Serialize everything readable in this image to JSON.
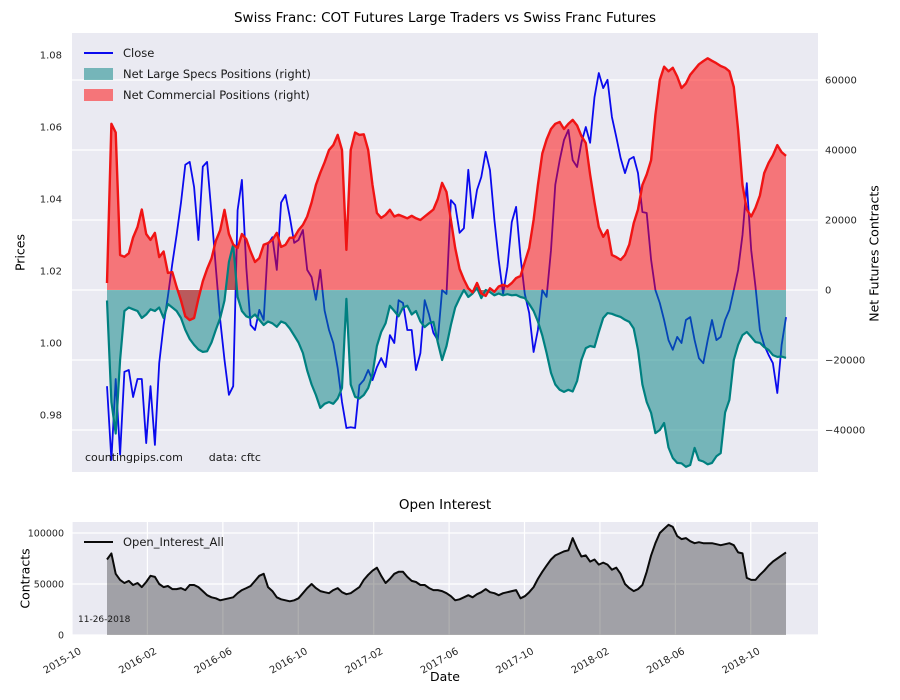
{
  "top_chart": {
    "title": "Swiss Franc: COT Futures Large Traders vs Swiss Franc Futures",
    "ylabel_left": "Prices",
    "ylabel_right": "Net Futures Contracts",
    "legend": {
      "close": "Close",
      "specs": "Net Large Specs Positions (right)",
      "comm": "Net Commercial Positions (right)"
    },
    "watermark": "countingpips.com",
    "source_note": "data: cftc",
    "colors": {
      "close_line": "#0a0aee",
      "specs_line": "#008080",
      "comm_line": "#f01414",
      "plot_bg": "#eaeaf2",
      "grid": "#ffffff"
    }
  },
  "bottom_chart": {
    "title": "Open Interest",
    "ylabel": "Contracts",
    "xlabel": "Date",
    "legend": "Open_Interest_All",
    "annotation_date": "11-26-2018",
    "colors": {
      "line": "#0a0a0a",
      "plot_bg": "#eaeaf2",
      "grid": "#ffffff"
    }
  },
  "chart_data": [
    {
      "type": "line+area",
      "title": "Swiss Franc: COT Futures Large Traders vs Swiss Franc Futures",
      "x_unit": "weekly, 2015-11-30 to 2018-11-26",
      "n_points": 157,
      "ylabel_left": "Prices",
      "ylabel_right": "Net Futures Contracts",
      "yticks_left": [
        0.98,
        1.0,
        1.02,
        1.04,
        1.06,
        1.08
      ],
      "yticks_right": [
        -40000,
        -20000,
        0,
        20000,
        40000,
        60000
      ],
      "ylim_left": [
        0.9642,
        1.0861
      ],
      "ylim_right": [
        -52000,
        73400
      ],
      "grid": "horizontal-right-axis",
      "legend_position": "upper left",
      "series": [
        {
          "name": "Close",
          "axis": "left",
          "type": "line",
          "values": [
            0.988,
            0.9675,
            0.99,
            0.969,
            0.992,
            0.9925,
            0.985,
            0.99,
            0.99,
            0.9722,
            0.988,
            0.9717,
            0.9944,
            1.005,
            1.013,
            1.022,
            1.03,
            1.039,
            1.0495,
            1.0503,
            1.0433,
            1.0286,
            1.049,
            1.0503,
            1.036,
            1.021,
            1.0064,
            0.9953,
            0.9856,
            0.988,
            1.0369,
            1.0453,
            1.021,
            1.005,
            1.0036,
            1.0092,
            1.0064,
            1.0275,
            1.0294,
            1.0203,
            1.039,
            1.0411,
            1.035,
            1.0278,
            1.0286,
            1.0314,
            1.0203,
            1.0183,
            1.012,
            1.0203,
            1.009,
            1.0036,
            1.0,
            0.993,
            0.9836,
            0.9764,
            0.9766,
            0.9764,
            0.9883,
            0.9897,
            0.9925,
            0.9897,
            0.9933,
            0.9958,
            0.9933,
            1.0022,
            1.0,
            1.0119,
            1.0111,
            1.0036,
            1.0036,
            0.9925,
            0.9972,
            1.0119,
            1.0078,
            1.0028,
            1.0008,
            1.0147,
            1.0136,
            1.0397,
            1.0383,
            1.0306,
            1.0319,
            1.0481,
            1.0347,
            1.0425,
            1.0461,
            1.0531,
            1.048,
            1.0342,
            1.0231,
            1.0136,
            1.0211,
            1.0336,
            1.0378,
            1.0239,
            1.0136,
            1.0083,
            0.9975,
            1.0036,
            1.0147,
            1.0128,
            1.0258,
            1.044,
            1.0508,
            1.0564,
            1.0592,
            1.0508,
            1.0489,
            1.0556,
            1.06,
            1.0556,
            1.0683,
            1.075,
            1.0708,
            1.0731,
            1.0628,
            1.0572,
            1.0514,
            1.0472,
            1.051,
            1.0517,
            1.0472,
            1.0364,
            1.0361,
            1.0231,
            1.0147,
            1.0111,
            1.0064,
            1.0008,
            0.9981,
            1.0017,
            1.0,
            1.0064,
            1.0072,
            1.0008,
            0.9958,
            0.9944,
            1.0008,
            1.0064,
            1.0008,
            1.0017,
            1.0064,
            1.0092,
            1.0147,
            1.0203,
            1.03,
            1.0444,
            1.0258,
            1.0156,
            1.0036,
            0.9994,
            0.9967,
            0.9944,
            0.9861,
            0.9994,
            1.0072
          ]
        },
        {
          "name": "Net Large Specs Positions (right)",
          "axis": "right",
          "type": "area",
          "values": [
            -3000,
            -32000,
            -41000,
            -20000,
            -6000,
            -5000,
            -5500,
            -6000,
            -8000,
            -7000,
            -5500,
            -6000,
            -5000,
            -8000,
            -4000,
            -5000,
            -6000,
            -8000,
            -11400,
            -14000,
            -15700,
            -17000,
            -17700,
            -17500,
            -15000,
            -11400,
            -8000,
            -3000,
            8000,
            13000,
            -2000,
            -6000,
            -7500,
            -8000,
            -7000,
            -8500,
            -10000,
            -9000,
            -9500,
            -10500,
            -9000,
            -9500,
            -11000,
            -13000,
            -15000,
            -18000,
            -23000,
            -27000,
            -30000,
            -33700,
            -32500,
            -32000,
            -32500,
            -31000,
            -28000,
            -2500,
            -27000,
            -30500,
            -31000,
            -30000,
            -28000,
            -24000,
            -16000,
            -12000,
            -9500,
            -4500,
            -6000,
            -7500,
            -5000,
            -4500,
            -7000,
            -6000,
            -9000,
            -10600,
            -9500,
            -9100,
            -15000,
            -20000,
            -16000,
            -10000,
            -5000,
            -2300,
            0,
            -2000,
            -1000,
            600,
            -2300,
            0,
            -600,
            -1500,
            -1000,
            -1500,
            -1200,
            -1500,
            -1400,
            -2000,
            -2300,
            -4000,
            -6000,
            -9000,
            -13000,
            -18000,
            -23700,
            -27000,
            -28500,
            -29100,
            -28500,
            -29000,
            -26000,
            -20000,
            -16600,
            -16000,
            -16300,
            -12000,
            -8000,
            -6600,
            -6800,
            -7300,
            -7700,
            -8500,
            -9100,
            -11000,
            -17100,
            -27000,
            -32000,
            -35100,
            -40900,
            -40000,
            -38000,
            -45000,
            -48000,
            -49400,
            -49500,
            -50500,
            -50000,
            -45100,
            -48600,
            -49000,
            -49800,
            -49400,
            -47500,
            -46600,
            -35000,
            -31400,
            -20000,
            -15700,
            -12900,
            -12000,
            -13400,
            -14900,
            -15100,
            -16300,
            -17100,
            -18600,
            -19100,
            -19000,
            -19400
          ]
        },
        {
          "name": "Net Commercial Positions (right)",
          "axis": "right",
          "type": "area",
          "values": [
            2000,
            47500,
            45000,
            10000,
            9500,
            10500,
            15000,
            18000,
            23000,
            16000,
            14300,
            16300,
            9400,
            11000,
            4900,
            5100,
            900,
            -3000,
            -7500,
            -8600,
            -8000,
            -2500,
            2500,
            6000,
            9000,
            14000,
            17100,
            22900,
            16000,
            13000,
            12000,
            16000,
            14500,
            11000,
            8000,
            9100,
            12900,
            13400,
            14300,
            16300,
            12300,
            12900,
            14900,
            15000,
            17100,
            18600,
            21000,
            25000,
            30000,
            33500,
            36500,
            40000,
            41400,
            44300,
            40000,
            11500,
            40000,
            45000,
            44300,
            44500,
            40000,
            30000,
            22000,
            20600,
            21500,
            22900,
            21000,
            21500,
            21000,
            20500,
            21200,
            20500,
            20000,
            21000,
            22000,
            23000,
            26000,
            30600,
            28000,
            20000,
            12000,
            6000,
            3000,
            500,
            -700,
            2000,
            -1000,
            -1700,
            500,
            -500,
            1000,
            1500,
            1000,
            2000,
            3400,
            4000,
            8000,
            12000,
            20000,
            30000,
            39000,
            43000,
            46000,
            47500,
            48000,
            46000,
            47500,
            48600,
            47000,
            44000,
            42000,
            33000,
            25000,
            18000,
            15200,
            17100,
            10000,
            9400,
            8600,
            10000,
            13000,
            19100,
            23000,
            30000,
            33000,
            37100,
            50000,
            60000,
            63800,
            62500,
            63500,
            61000,
            57700,
            59000,
            61500,
            63000,
            64500,
            65400,
            66200,
            65500,
            64800,
            64000,
            63500,
            62500,
            58000,
            45700,
            30000,
            23000,
            21000,
            23500,
            27000,
            33400,
            36300,
            38500,
            41400,
            39400,
            38300
          ]
        }
      ]
    },
    {
      "type": "area",
      "title": "Open Interest",
      "ylabel": "Contracts",
      "xlabel": "Date",
      "x_unit": "weekly, 2015-11-30 to 2018-11-26",
      "n_points": 157,
      "yticks": [
        0,
        50000,
        100000
      ],
      "ylim": [
        0,
        110800
      ],
      "xtick_labels": [
        "2015-10",
        "2016-02",
        "2016-06",
        "2016-10",
        "2017-02",
        "2017-06",
        "2017-10",
        "2018-02",
        "2018-06",
        "2018-10"
      ],
      "grid": "both",
      "legend_position": "upper left",
      "series": [
        {
          "name": "Open_Interest_All",
          "type": "area",
          "values": [
            74000,
            80000,
            60000,
            54000,
            51000,
            53000,
            49000,
            51000,
            47000,
            52000,
            58000,
            57000,
            50000,
            47000,
            48000,
            45000,
            45000,
            46000,
            44000,
            49000,
            49000,
            47000,
            43000,
            39000,
            37000,
            36000,
            34000,
            35000,
            36000,
            37000,
            41000,
            44000,
            46000,
            48000,
            53000,
            58000,
            60000,
            47000,
            43000,
            37000,
            35000,
            34000,
            33000,
            34000,
            36000,
            41000,
            46000,
            50000,
            46000,
            43000,
            42000,
            41000,
            44000,
            46000,
            42000,
            40000,
            41000,
            44000,
            47000,
            54000,
            59000,
            63000,
            66000,
            58000,
            51000,
            55000,
            60000,
            62000,
            62000,
            57000,
            53000,
            52000,
            49000,
            49000,
            46000,
            44000,
            44000,
            43000,
            41000,
            38000,
            34000,
            35000,
            37000,
            39000,
            37000,
            40000,
            42000,
            45000,
            42000,
            41000,
            39000,
            41000,
            42000,
            43000,
            44000,
            36000,
            38000,
            42000,
            47000,
            55000,
            62000,
            68000,
            74000,
            78000,
            80000,
            82000,
            83000,
            95000,
            85000,
            77000,
            78000,
            72000,
            74000,
            69000,
            71000,
            69000,
            64000,
            66000,
            60000,
            50000,
            46000,
            43000,
            45000,
            49000,
            62000,
            78000,
            90000,
            100000,
            104000,
            108000,
            106000,
            97000,
            94000,
            95000,
            92000,
            90000,
            91000,
            90000,
            90000,
            90000,
            89000,
            88000,
            89000,
            90000,
            88000,
            81000,
            80000,
            56000,
            54000,
            54000,
            59000,
            63000,
            68000,
            72000,
            75000,
            78000,
            81000
          ]
        }
      ]
    }
  ]
}
